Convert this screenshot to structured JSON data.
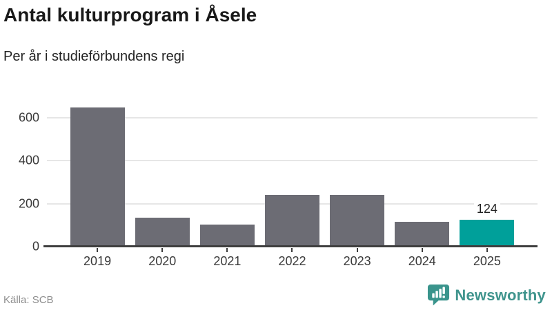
{
  "header": {
    "title": "Antal kulturprogram i Åsele",
    "subtitle": "Per år i studieförbundens regi"
  },
  "chart_data": {
    "type": "bar",
    "title": "Antal kulturprogram i Åsele",
    "subtitle": "Per år i studieförbundens regi",
    "categories": [
      "2019",
      "2020",
      "2021",
      "2022",
      "2023",
      "2024",
      "2025"
    ],
    "values": [
      650,
      134,
      102,
      241,
      241,
      115,
      124
    ],
    "xlabel": "",
    "ylabel": "",
    "ylim": [
      0,
      700
    ],
    "yticks": [
      0,
      200,
      400,
      600
    ],
    "grid": true,
    "legend": false,
    "bar_color": "#6c6c74",
    "highlight_color": "#00a09a",
    "highlight_index": 6,
    "annotations": [
      {
        "index": 6,
        "text": "124"
      }
    ]
  },
  "footer": {
    "source": "Källa: SCB",
    "brand": "Newsworthy"
  },
  "icons": {
    "brand_icon": "newsworthy-bubble-barchart-icon"
  },
  "colors": {
    "background": "#ffffff",
    "bar": "#6c6c74",
    "highlight": "#00a09a",
    "axis": "#3f3f3f",
    "grid": "#e6e6e6",
    "title_text": "#191919",
    "tick_label": "#3a3a3a",
    "source_text": "#8e8e8e",
    "brand_teal": "#3f948d"
  }
}
